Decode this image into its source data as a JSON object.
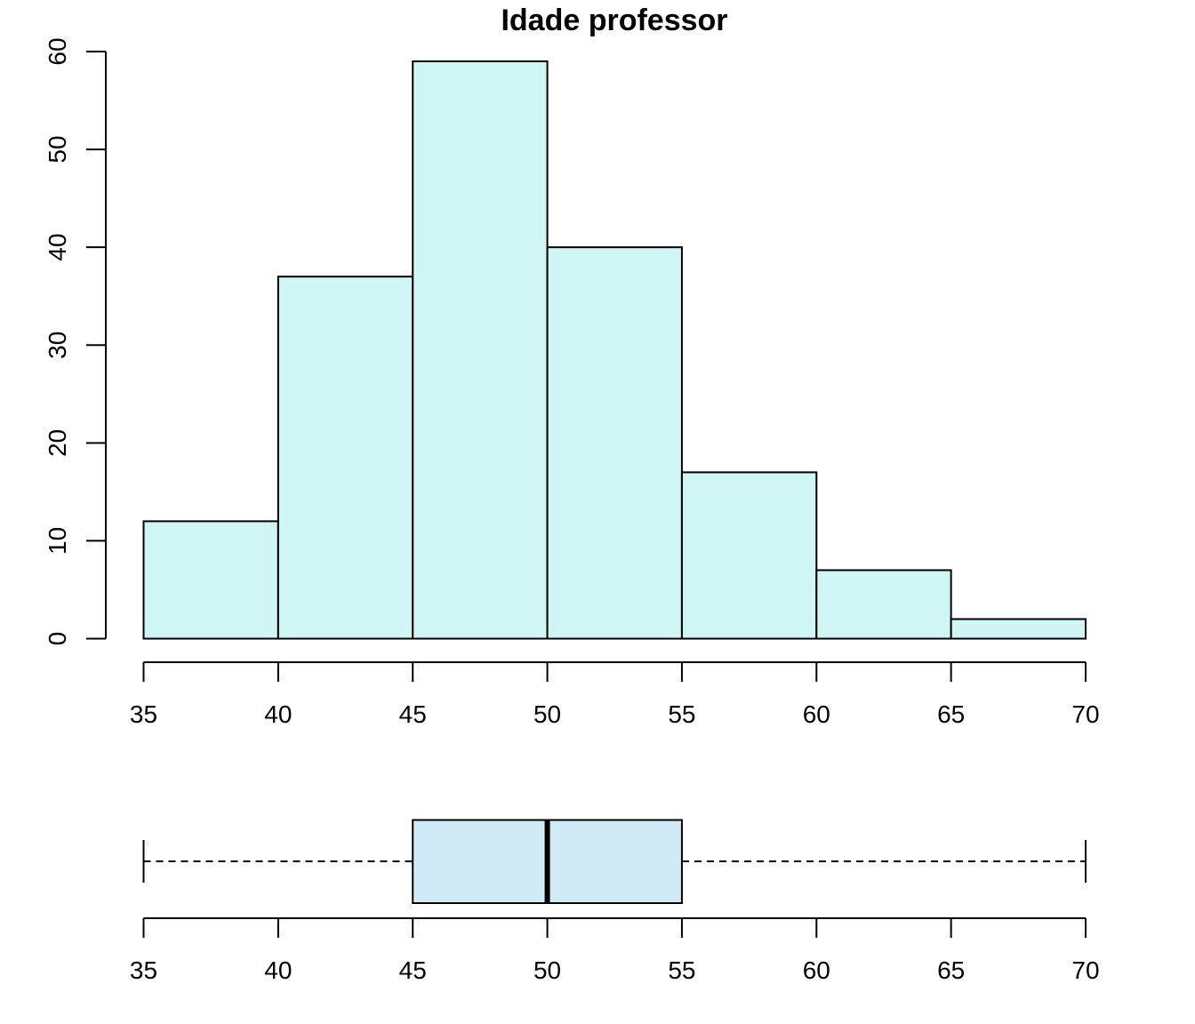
{
  "chart_data": [
    {
      "type": "bar",
      "subtype": "histogram",
      "title": "Idade professor",
      "bins": [
        {
          "from": 35,
          "to": 40,
          "count": 12
        },
        {
          "from": 40,
          "to": 45,
          "count": 37
        },
        {
          "from": 45,
          "to": 50,
          "count": 59
        },
        {
          "from": 50,
          "to": 55,
          "count": 40
        },
        {
          "from": 55,
          "to": 60,
          "count": 17
        },
        {
          "from": 60,
          "to": 65,
          "count": 7
        },
        {
          "from": 65,
          "to": 70,
          "count": 2
        }
      ],
      "xlim": [
        35,
        70
      ],
      "ylim": [
        0,
        60
      ],
      "x_ticks": [
        "35",
        "40",
        "45",
        "50",
        "55",
        "60",
        "65",
        "70"
      ],
      "y_ticks": [
        "0",
        "10",
        "20",
        "30",
        "40",
        "50",
        "60"
      ],
      "bar_color": "#cff5f4",
      "grid": false
    },
    {
      "type": "boxplot",
      "orientation": "horizontal",
      "min": 35,
      "q1": 45,
      "median": 50,
      "q3": 55,
      "max": 70,
      "xlim": [
        35,
        70
      ],
      "x_ticks": [
        "35",
        "40",
        "45",
        "50",
        "55",
        "60",
        "65",
        "70"
      ],
      "box_color": "#d0ebf5",
      "grid": false
    }
  ]
}
